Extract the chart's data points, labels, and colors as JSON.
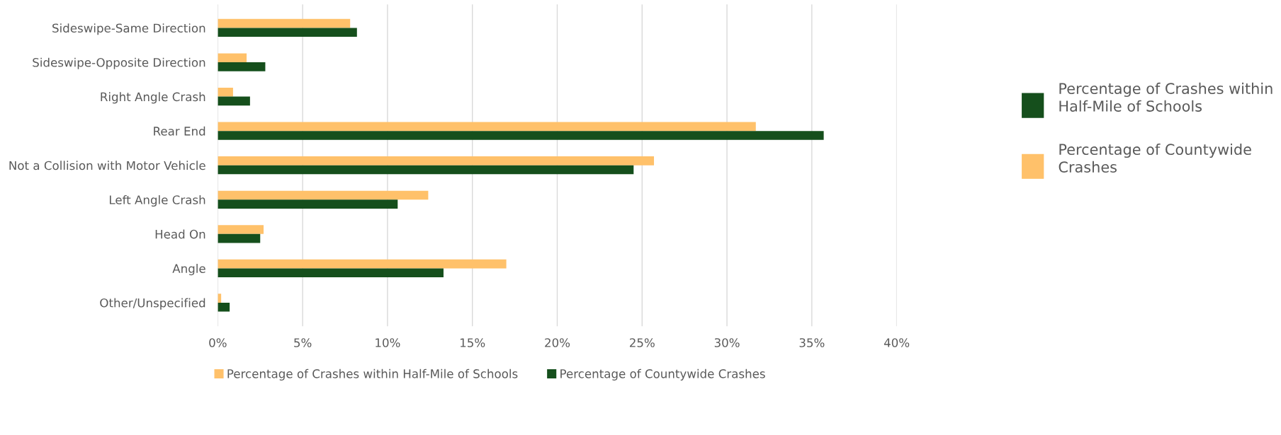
{
  "chart_data": {
    "type": "bar",
    "orientation": "horizontal",
    "categories": [
      "Sideswipe-Same Direction",
      "Sideswipe-Opposite Direction",
      "Right Angle Crash",
      "Rear End",
      "Not a Collision with Motor Vehicle",
      "Left Angle Crash",
      "Head On",
      "Angle",
      "Other/Unspecified"
    ],
    "series": [
      {
        "name": "Percentage of Crashes within Half-Mile of Schools",
        "color": "#ffc16a",
        "values": [
          7.8,
          1.7,
          0.9,
          31.7,
          25.7,
          12.4,
          2.7,
          17.0,
          0.2
        ]
      },
      {
        "name": "Percentage of Countywide Crashes",
        "color": "#154f1c",
        "values": [
          8.2,
          2.8,
          1.9,
          35.7,
          24.5,
          10.6,
          2.5,
          13.3,
          0.7
        ]
      }
    ],
    "xlim": [
      0,
      40
    ],
    "xticks": [
      {
        "value": 0,
        "label": "0%"
      },
      {
        "value": 5,
        "label": "5%"
      },
      {
        "value": 10,
        "label": "10%"
      },
      {
        "value": 15,
        "label": "15%"
      },
      {
        "value": 20,
        "label": "20%"
      },
      {
        "value": 25,
        "label": "25%"
      },
      {
        "value": 30,
        "label": "30%"
      },
      {
        "value": 35,
        "label": "35%"
      },
      {
        "value": 40,
        "label": "40%"
      }
    ],
    "grid": "x",
    "legend": "bottom",
    "annotations": [
      "Percentage of Crashes within\nHalf-Mile of Schools",
      "Percentage of Countywide\nCrashes"
    ]
  }
}
